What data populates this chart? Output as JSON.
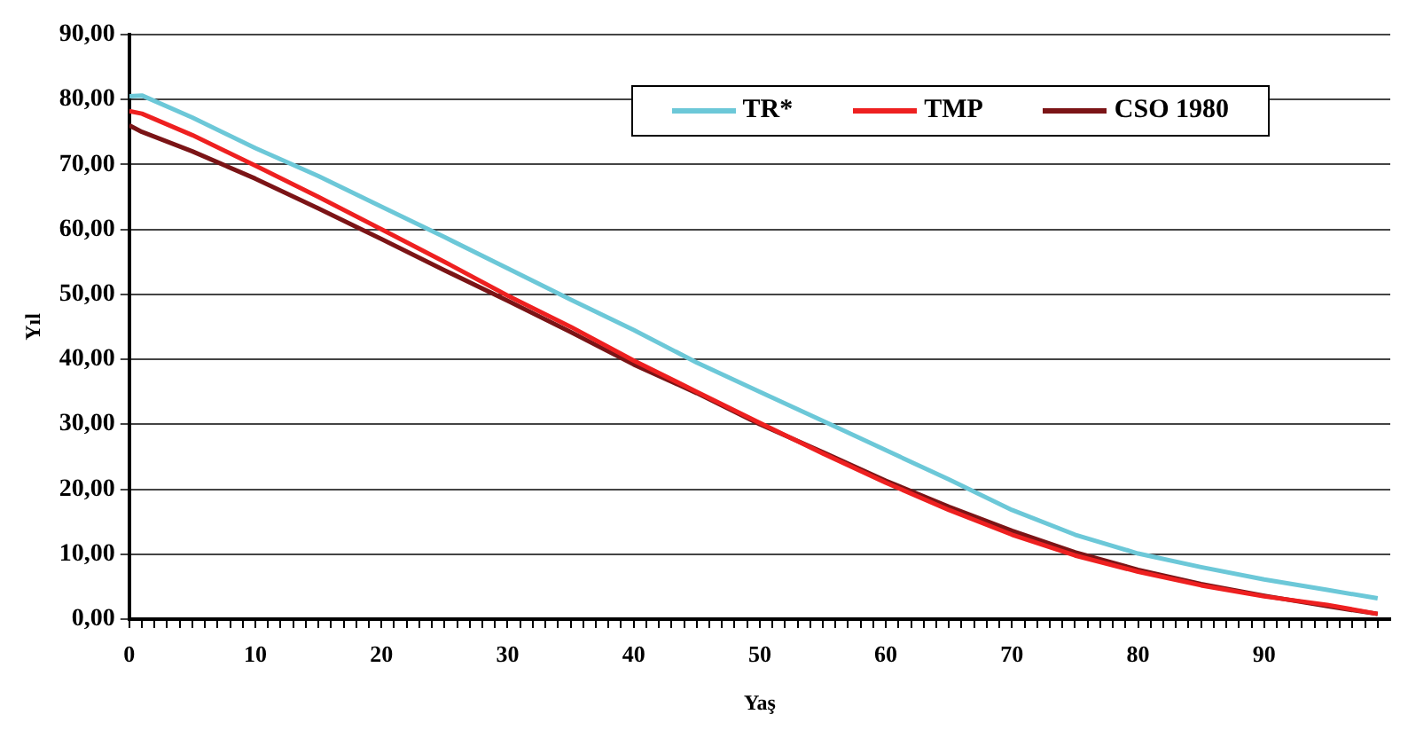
{
  "chart_data": {
    "type": "line",
    "xlabel": "Yaş",
    "ylabel": "Yıl",
    "x": [
      0,
      1,
      5,
      10,
      15,
      20,
      25,
      30,
      35,
      40,
      45,
      50,
      55,
      60,
      65,
      70,
      75,
      80,
      85,
      90,
      95,
      99
    ],
    "series": [
      {
        "name": "TR*",
        "color": "#6cc8d8",
        "values": [
          80.5,
          80.6,
          77.2,
          72.5,
          68.2,
          63.5,
          58.8,
          54,
          49.2,
          44.5,
          39.5,
          35,
          30.5,
          26,
          21.5,
          16.8,
          13,
          10.1,
          8,
          6.1,
          4.5,
          3.2
        ]
      },
      {
        "name": "TMP",
        "color": "#ee2020",
        "values": [
          78.2,
          77.8,
          74.5,
          69.8,
          65,
          60,
          55,
          49.8,
          45,
          39.8,
          35,
          30.2,
          25.5,
          21,
          16.8,
          13,
          9.8,
          7.3,
          5.2,
          3.5,
          2.2,
          0.8
        ]
      },
      {
        "name": "CSO 1980",
        "color": "#7b1416",
        "values": [
          76,
          75,
          72,
          67.8,
          63.2,
          58.5,
          53.7,
          49,
          44.2,
          39.2,
          34.8,
          30,
          25.7,
          21.3,
          17.3,
          13.6,
          10.3,
          7.6,
          5.4,
          3.6,
          2,
          0.8
        ]
      }
    ],
    "xlim": [
      0,
      100
    ],
    "xticks": [
      0,
      {
        "value": 1,
        "label": null
      },
      {
        "value": 2,
        "label": null
      },
      {
        "value": 3,
        "label": null
      },
      {
        "value": 4,
        "label": null
      },
      {
        "value": 5,
        "label": null
      },
      {
        "value": 6,
        "label": null
      },
      {
        "value": 7,
        "label": null
      },
      {
        "value": 8,
        "label": null
      },
      {
        "value": 9,
        "label": null
      },
      10,
      {
        "value": 11,
        "label": null
      },
      {
        "value": 12,
        "label": null
      },
      {
        "value": 13,
        "label": null
      },
      {
        "value": 14,
        "label": null
      },
      {
        "value": 15,
        "label": null
      },
      {
        "value": 16,
        "label": null
      },
      {
        "value": 17,
        "label": null
      },
      {
        "value": 18,
        "label": null
      },
      {
        "value": 19,
        "label": null
      },
      20,
      {
        "value": 21,
        "label": null
      },
      {
        "value": 22,
        "label": null
      },
      {
        "value": 23,
        "label": null
      },
      {
        "value": 24,
        "label": null
      },
      {
        "value": 25,
        "label": null
      },
      {
        "value": 26,
        "label": null
      },
      {
        "value": 27,
        "label": null
      },
      {
        "value": 28,
        "label": null
      },
      {
        "value": 29,
        "label": null
      },
      30,
      {
        "value": 31,
        "label": null
      },
      {
        "value": 32,
        "label": null
      },
      {
        "value": 33,
        "label": null
      },
      {
        "value": 34,
        "label": null
      },
      {
        "value": 35,
        "label": null
      },
      {
        "value": 36,
        "label": null
      },
      {
        "value": 37,
        "label": null
      },
      {
        "value": 38,
        "label": null
      },
      {
        "value": 39,
        "label": null
      },
      40,
      {
        "value": 41,
        "label": null
      },
      {
        "value": 42,
        "label": null
      },
      {
        "value": 43,
        "label": null
      },
      {
        "value": 44,
        "label": null
      },
      {
        "value": 45,
        "label": null
      },
      {
        "value": 46,
        "label": null
      },
      {
        "value": 47,
        "label": null
      },
      {
        "value": 48,
        "label": null
      },
      {
        "value": 49,
        "label": null
      },
      50,
      {
        "value": 51,
        "label": null
      },
      {
        "value": 52,
        "label": null
      },
      {
        "value": 53,
        "label": null
      },
      {
        "value": 54,
        "label": null
      },
      {
        "value": 55,
        "label": null
      },
      {
        "value": 56,
        "label": null
      },
      {
        "value": 57,
        "label": null
      },
      {
        "value": 58,
        "label": null
      },
      {
        "value": 59,
        "label": null
      },
      60,
      {
        "value": 61,
        "label": null
      },
      {
        "value": 62,
        "label": null
      },
      {
        "value": 63,
        "label": null
      },
      {
        "value": 64,
        "label": null
      },
      {
        "value": 65,
        "label": null
      },
      {
        "value": 66,
        "label": null
      },
      {
        "value": 67,
        "label": null
      },
      {
        "value": 68,
        "label": null
      },
      {
        "value": 69,
        "label": null
      },
      70,
      {
        "value": 71,
        "label": null
      },
      {
        "value": 72,
        "label": null
      },
      {
        "value": 73,
        "label": null
      },
      {
        "value": 74,
        "label": null
      },
      {
        "value": 75,
        "label": null
      },
      {
        "value": 76,
        "label": null
      },
      {
        "value": 77,
        "label": null
      },
      {
        "value": 78,
        "label": null
      },
      {
        "value": 79,
        "label": null
      },
      80,
      {
        "value": 81,
        "label": null
      },
      {
        "value": 82,
        "label": null
      },
      {
        "value": 83,
        "label": null
      },
      {
        "value": 84,
        "label": null
      },
      {
        "value": 85,
        "label": null
      },
      {
        "value": 86,
        "label": null
      },
      {
        "value": 87,
        "label": null
      },
      {
        "value": 88,
        "label": null
      },
      {
        "value": 89,
        "label": null
      },
      90,
      {
        "value": 91,
        "label": null
      },
      {
        "value": 92,
        "label": null
      },
      {
        "value": 93,
        "label": null
      },
      {
        "value": 94,
        "label": null
      },
      {
        "value": 95,
        "label": null
      },
      {
        "value": 96,
        "label": null
      },
      {
        "value": 97,
        "label": null
      },
      {
        "value": 98,
        "label": null
      },
      {
        "value": 99,
        "label": null
      }
    ],
    "ylim": [
      0,
      90
    ],
    "yticks": [
      {
        "value": 0,
        "label": "0,00"
      },
      {
        "value": 10,
        "label": "10,00"
      },
      {
        "value": 20,
        "label": "20,00"
      },
      {
        "value": 30,
        "label": "30,00"
      },
      {
        "value": 40,
        "label": "40,00"
      },
      {
        "value": 50,
        "label": "50,00"
      },
      {
        "value": 60,
        "label": "60,00"
      },
      {
        "value": 70,
        "label": "70,00"
      },
      {
        "value": 80,
        "label": "80,00"
      },
      {
        "value": 90,
        "label": "90,00"
      }
    ],
    "grid": "y",
    "legend": "top right",
    "marker": "none",
    "line_style": "solid"
  }
}
